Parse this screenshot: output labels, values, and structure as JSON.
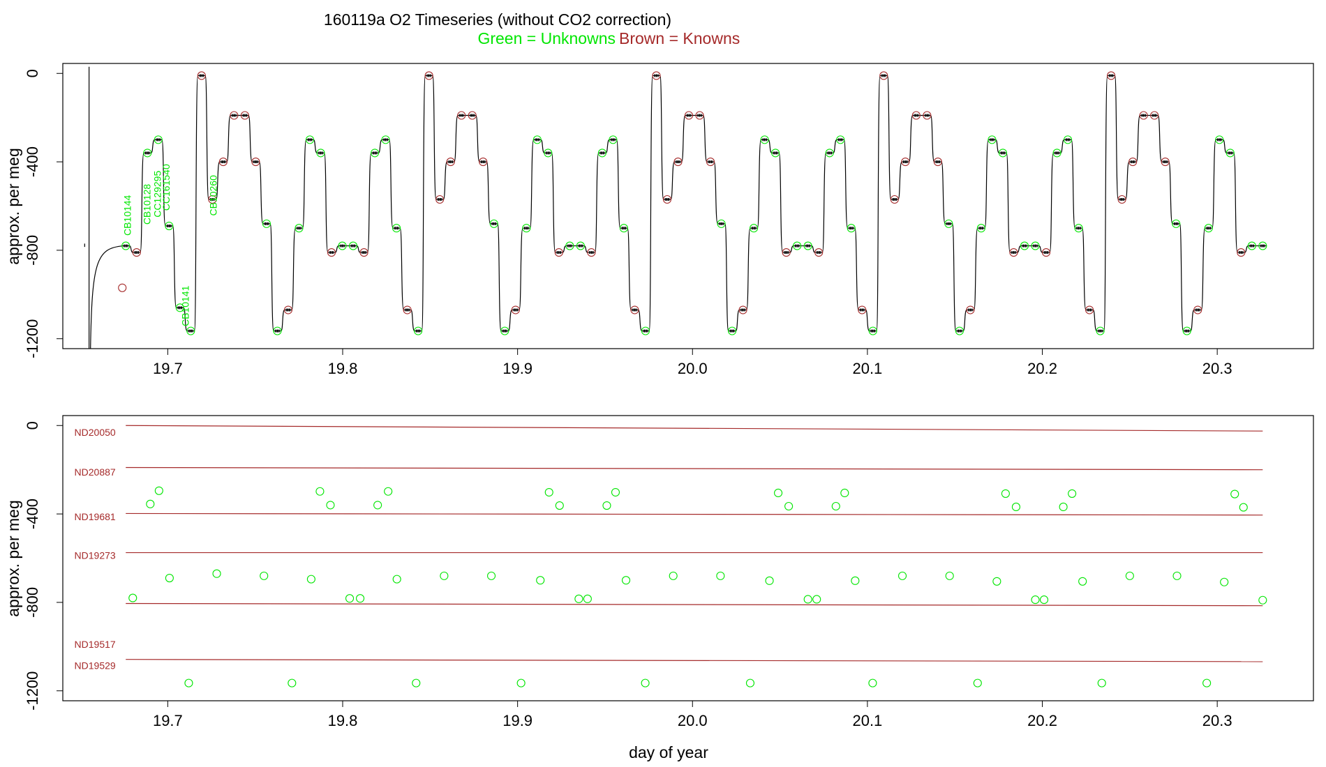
{
  "title": {
    "main": "160119a   O2 Timeseries (without CO2 correction)",
    "legend_unknowns": "Green = Unknowns",
    "legend_knowns": "Brown = Knowns"
  },
  "colors": {
    "unknowns": "#00e600",
    "knowns": "#a52a2a",
    "line": "#000000"
  },
  "chart_data": [
    {
      "type": "line",
      "ylabel": "approx. per meg",
      "xlabel": "",
      "xlim": [
        19.64,
        20.355
      ],
      "ylim": [
        -1245,
        45
      ],
      "x_ticks": [
        "19.7",
        "19.8",
        "19.9",
        "20.0",
        "20.1",
        "20.2",
        "20.3"
      ],
      "y_ticks": [
        "0",
        "-400",
        "-800",
        "-1200"
      ],
      "grid": false,
      "legend": "top-center",
      "levels": [
        -780,
        -810,
        -360,
        -300,
        -690,
        -1060,
        -1165,
        -10,
        -570,
        -400,
        -190,
        -190,
        -400,
        -680,
        -1165,
        -1070,
        -700,
        -300,
        -360,
        -810,
        -780,
        -780,
        -810,
        -360,
        -300,
        -700,
        -1070,
        -1165,
        -10,
        -570,
        -400,
        -190,
        -190,
        -400,
        -680,
        -1165,
        -1070,
        -700,
        -300,
        -360,
        -810,
        -780,
        -780,
        -810,
        -360,
        -300,
        -700,
        -1070,
        -1165,
        -10,
        -570,
        -400,
        -190,
        -190,
        -400,
        -680,
        -1165,
        -1070,
        -700,
        -300,
        -360,
        -810,
        -780,
        -780,
        -810,
        -360,
        -300,
        -700,
        -1070,
        -1165,
        -10,
        -570,
        -400,
        -190,
        -190,
        -400,
        -680,
        -1165,
        -1070,
        -700,
        -300,
        -360,
        -810,
        -780,
        -780,
        -810,
        -360,
        -300,
        -700,
        -1070,
        -1165,
        -10,
        -570,
        -400,
        -190,
        -190,
        -400,
        -680,
        -1165,
        -1070,
        -700,
        -300,
        -360,
        -810,
        -780,
        -780
      ],
      "level_start": 19.676,
      "level_end": 20.326,
      "series_labels": [
        {
          "text": "CB10144",
          "x": 19.679,
          "y": -550
        },
        {
          "text": "CB10128",
          "x": 19.69,
          "y": -500
        },
        {
          "text": "CC129295",
          "x": 19.696,
          "y": -440
        },
        {
          "text": "CC161540",
          "x": 19.701,
          "y": -410
        },
        {
          "text": "CB10141",
          "x": 19.712,
          "y": -960
        },
        {
          "text": "CB10260",
          "x": 19.728,
          "y": -460
        }
      ],
      "outlier_point": {
        "x": 19.674,
        "y": -970
      }
    },
    {
      "type": "scatter",
      "ylabel": "approx. per meg",
      "xlabel": "day of year",
      "xlim": [
        19.64,
        20.355
      ],
      "ylim": [
        -1245,
        45
      ],
      "x_ticks": [
        "19.7",
        "19.8",
        "19.9",
        "20.0",
        "20.1",
        "20.2",
        "20.3"
      ],
      "y_ticks": [
        "0",
        "-400",
        "-800",
        "-1200"
      ],
      "grid": false,
      "standards": [
        {
          "name": "ND20050",
          "label_x": 19.645,
          "y": [
            0,
            -25
          ]
        },
        {
          "name": "ND20887",
          "label_x": 19.645,
          "y": [
            -190,
            -200
          ]
        },
        {
          "name": "ND19681",
          "label_x": 19.645,
          "y": [
            -398,
            -405
          ]
        },
        {
          "name": "ND19273",
          "label_x": 19.645,
          "y": [
            -575,
            -575
          ]
        },
        {
          "name": "ND19517",
          "label_x": 19.645,
          "y": [
            -805,
            -815
          ]
        },
        {
          "name": "ND19529",
          "label_x": 19.645,
          "y": [
            -1058,
            -1068
          ]
        }
      ],
      "standard_label_y": [
        -30,
        -210,
        -412,
        -588,
        -990,
        -1085
      ],
      "unknowns": [
        [
          19.68,
          -780
        ],
        [
          19.69,
          -355
        ],
        [
          19.695,
          -295
        ],
        [
          19.701,
          -690
        ],
        [
          19.712,
          -1165
        ],
        [
          19.728,
          -670
        ],
        [
          19.755,
          -680
        ],
        [
          19.771,
          -1165
        ],
        [
          19.782,
          -695
        ],
        [
          19.787,
          -298
        ],
        [
          19.793,
          -360
        ],
        [
          19.804,
          -782
        ],
        [
          19.81,
          -782
        ],
        [
          19.82,
          -360
        ],
        [
          19.826,
          -298
        ],
        [
          19.831,
          -695
        ],
        [
          19.842,
          -1165
        ],
        [
          19.858,
          -680
        ],
        [
          19.885,
          -680
        ],
        [
          19.902,
          -1165
        ],
        [
          19.913,
          -700
        ],
        [
          19.918,
          -302
        ],
        [
          19.924,
          -362
        ],
        [
          19.935,
          -784
        ],
        [
          19.94,
          -784
        ],
        [
          19.951,
          -362
        ],
        [
          19.956,
          -302
        ],
        [
          19.962,
          -700
        ],
        [
          19.973,
          -1165
        ],
        [
          19.989,
          -680
        ],
        [
          20.016,
          -680
        ],
        [
          20.033,
          -1165
        ],
        [
          20.044,
          -702
        ],
        [
          20.049,
          -305
        ],
        [
          20.055,
          -365
        ],
        [
          20.066,
          -786
        ],
        [
          20.071,
          -786
        ],
        [
          20.082,
          -365
        ],
        [
          20.087,
          -305
        ],
        [
          20.093,
          -702
        ],
        [
          20.103,
          -1165
        ],
        [
          20.12,
          -680
        ],
        [
          20.147,
          -680
        ],
        [
          20.163,
          -1165
        ],
        [
          20.174,
          -705
        ],
        [
          20.179,
          -308
        ],
        [
          20.185,
          -368
        ],
        [
          20.196,
          -788
        ],
        [
          20.201,
          -788
        ],
        [
          20.212,
          -368
        ],
        [
          20.217,
          -308
        ],
        [
          20.223,
          -705
        ],
        [
          20.234,
          -1165
        ],
        [
          20.25,
          -680
        ],
        [
          20.277,
          -680
        ],
        [
          20.294,
          -1165
        ],
        [
          20.304,
          -708
        ],
        [
          20.31,
          -310
        ],
        [
          20.315,
          -370
        ],
        [
          20.326,
          -790
        ]
      ]
    }
  ]
}
